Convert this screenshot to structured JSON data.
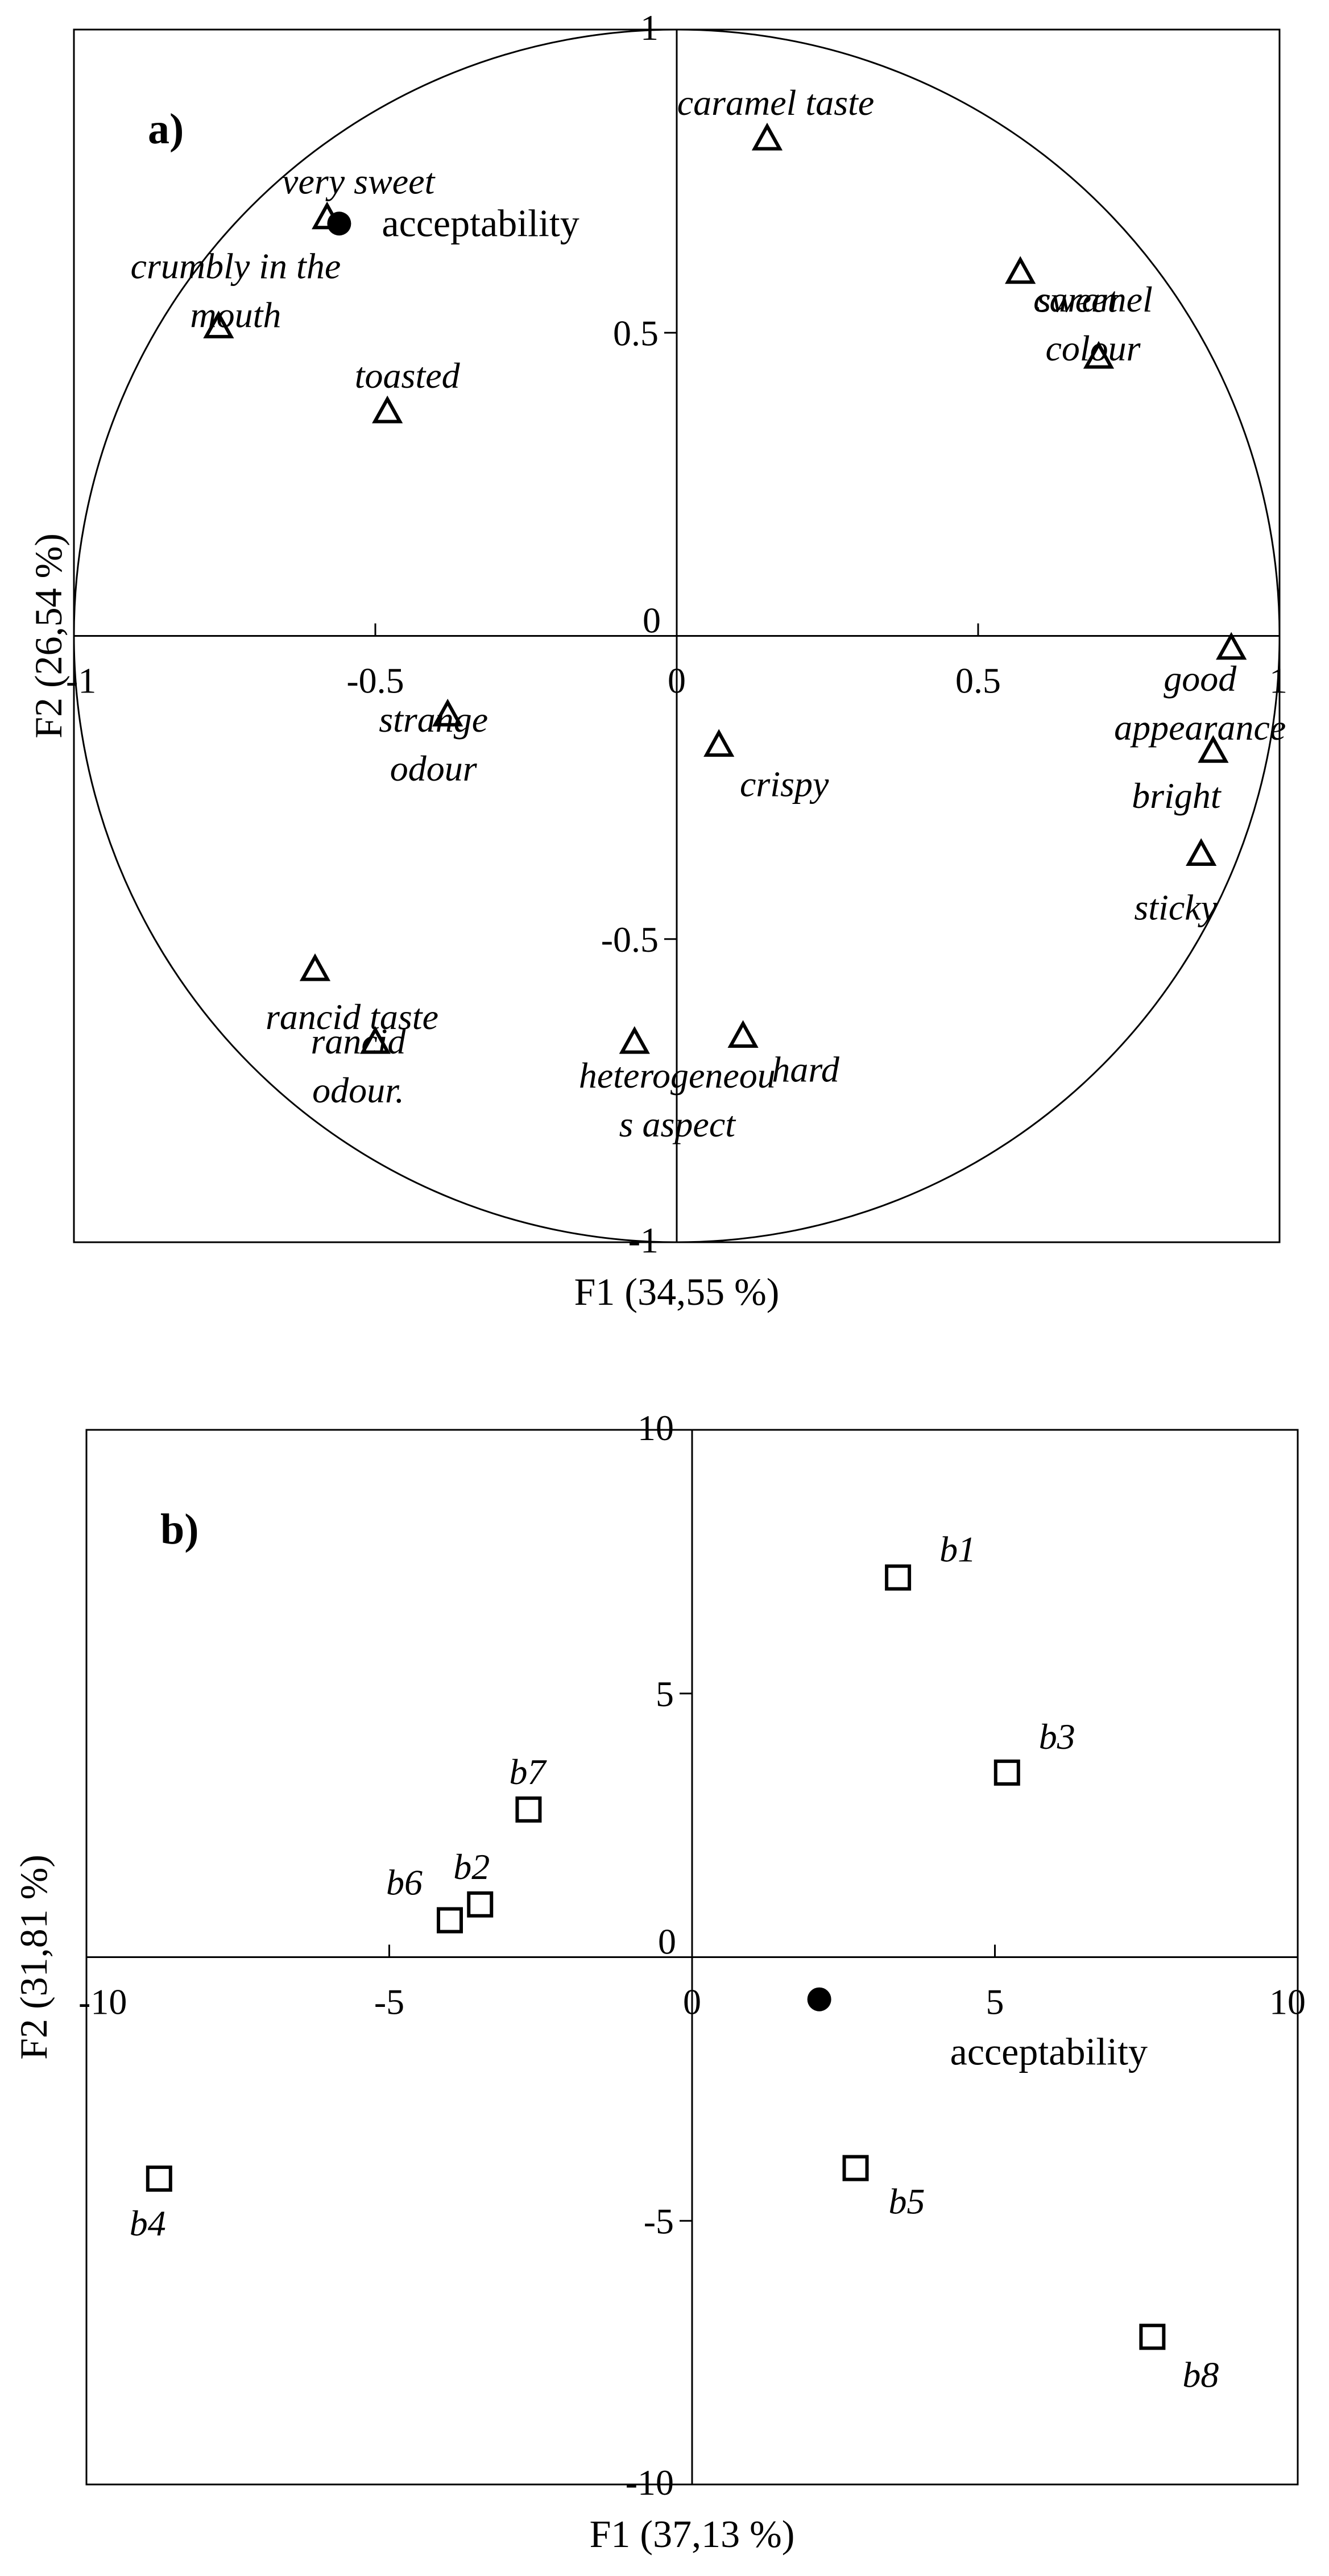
{
  "chart_data": [
    {
      "type": "scatter",
      "panel_label": "a)",
      "xlabel": "F1 (34,55 %)",
      "ylabel": "F2 (26,54 %)",
      "xlim": [
        -1,
        1
      ],
      "ylim": [
        -1,
        1
      ],
      "xticks": [
        "-1",
        "-0.5",
        "0",
        "0.5",
        "1"
      ],
      "yticks": [
        "-1",
        "-0.5",
        "0",
        "0.5",
        "1"
      ],
      "correlation_circle": true,
      "marker": "triangle",
      "points": [
        {
          "label": "caramel taste",
          "x": 0.15,
          "y": 0.82
        },
        {
          "label": "very sweet",
          "x": -0.58,
          "y": 0.69
        },
        {
          "label": "crumbly in the mouth",
          "x": -0.76,
          "y": 0.51
        },
        {
          "label": "toasted",
          "x": -0.48,
          "y": 0.37
        },
        {
          "label": "sweet",
          "x": 0.57,
          "y": 0.6
        },
        {
          "label": "caramel colour",
          "x": 0.7,
          "y": 0.46
        },
        {
          "label": "good appearance",
          "x": 0.92,
          "y": -0.02
        },
        {
          "label": "bright",
          "x": 0.89,
          "y": -0.19
        },
        {
          "label": "sticky",
          "x": 0.87,
          "y": -0.36
        },
        {
          "label": "strange odour",
          "x": -0.38,
          "y": -0.13
        },
        {
          "label": "crispy",
          "x": 0.07,
          "y": -0.18
        },
        {
          "label": "rancid taste",
          "x": -0.6,
          "y": -0.55
        },
        {
          "label": "rancid odour.",
          "x": -0.5,
          "y": -0.67
        },
        {
          "label": "heterogeneous aspect",
          "x": -0.07,
          "y": -0.67
        },
        {
          "label": "hard",
          "x": 0.11,
          "y": -0.66
        }
      ],
      "supplementary": {
        "label": "acceptability",
        "x": -0.56,
        "y": 0.68
      }
    },
    {
      "type": "scatter",
      "panel_label": "b)",
      "xlabel": "F1 (37,13 %)",
      "ylabel": "F2 (31,81 %)",
      "xlim": [
        -10,
        10
      ],
      "ylim": [
        -10,
        10
      ],
      "xticks": [
        "-10",
        "-5",
        "0",
        "5",
        "10"
      ],
      "yticks": [
        "-10",
        "-5",
        "0",
        "5",
        "10"
      ],
      "marker": "square",
      "points": [
        {
          "label": "b1",
          "x": 3.4,
          "y": 7.2
        },
        {
          "label": "b3",
          "x": 5.2,
          "y": 3.5
        },
        {
          "label": "b7",
          "x": -2.7,
          "y": 2.8
        },
        {
          "label": "b2",
          "x": -3.5,
          "y": 1.0
        },
        {
          "label": "b6",
          "x": -4.0,
          "y": 0.7
        },
        {
          "label": "b4",
          "x": -8.8,
          "y": -4.2
        },
        {
          "label": "b5",
          "x": 2.7,
          "y": -4.0
        },
        {
          "label": "b8",
          "x": 7.6,
          "y": -7.2
        }
      ],
      "supplementary": {
        "label": "acceptability",
        "x": 2.1,
        "y": -0.8
      }
    }
  ]
}
